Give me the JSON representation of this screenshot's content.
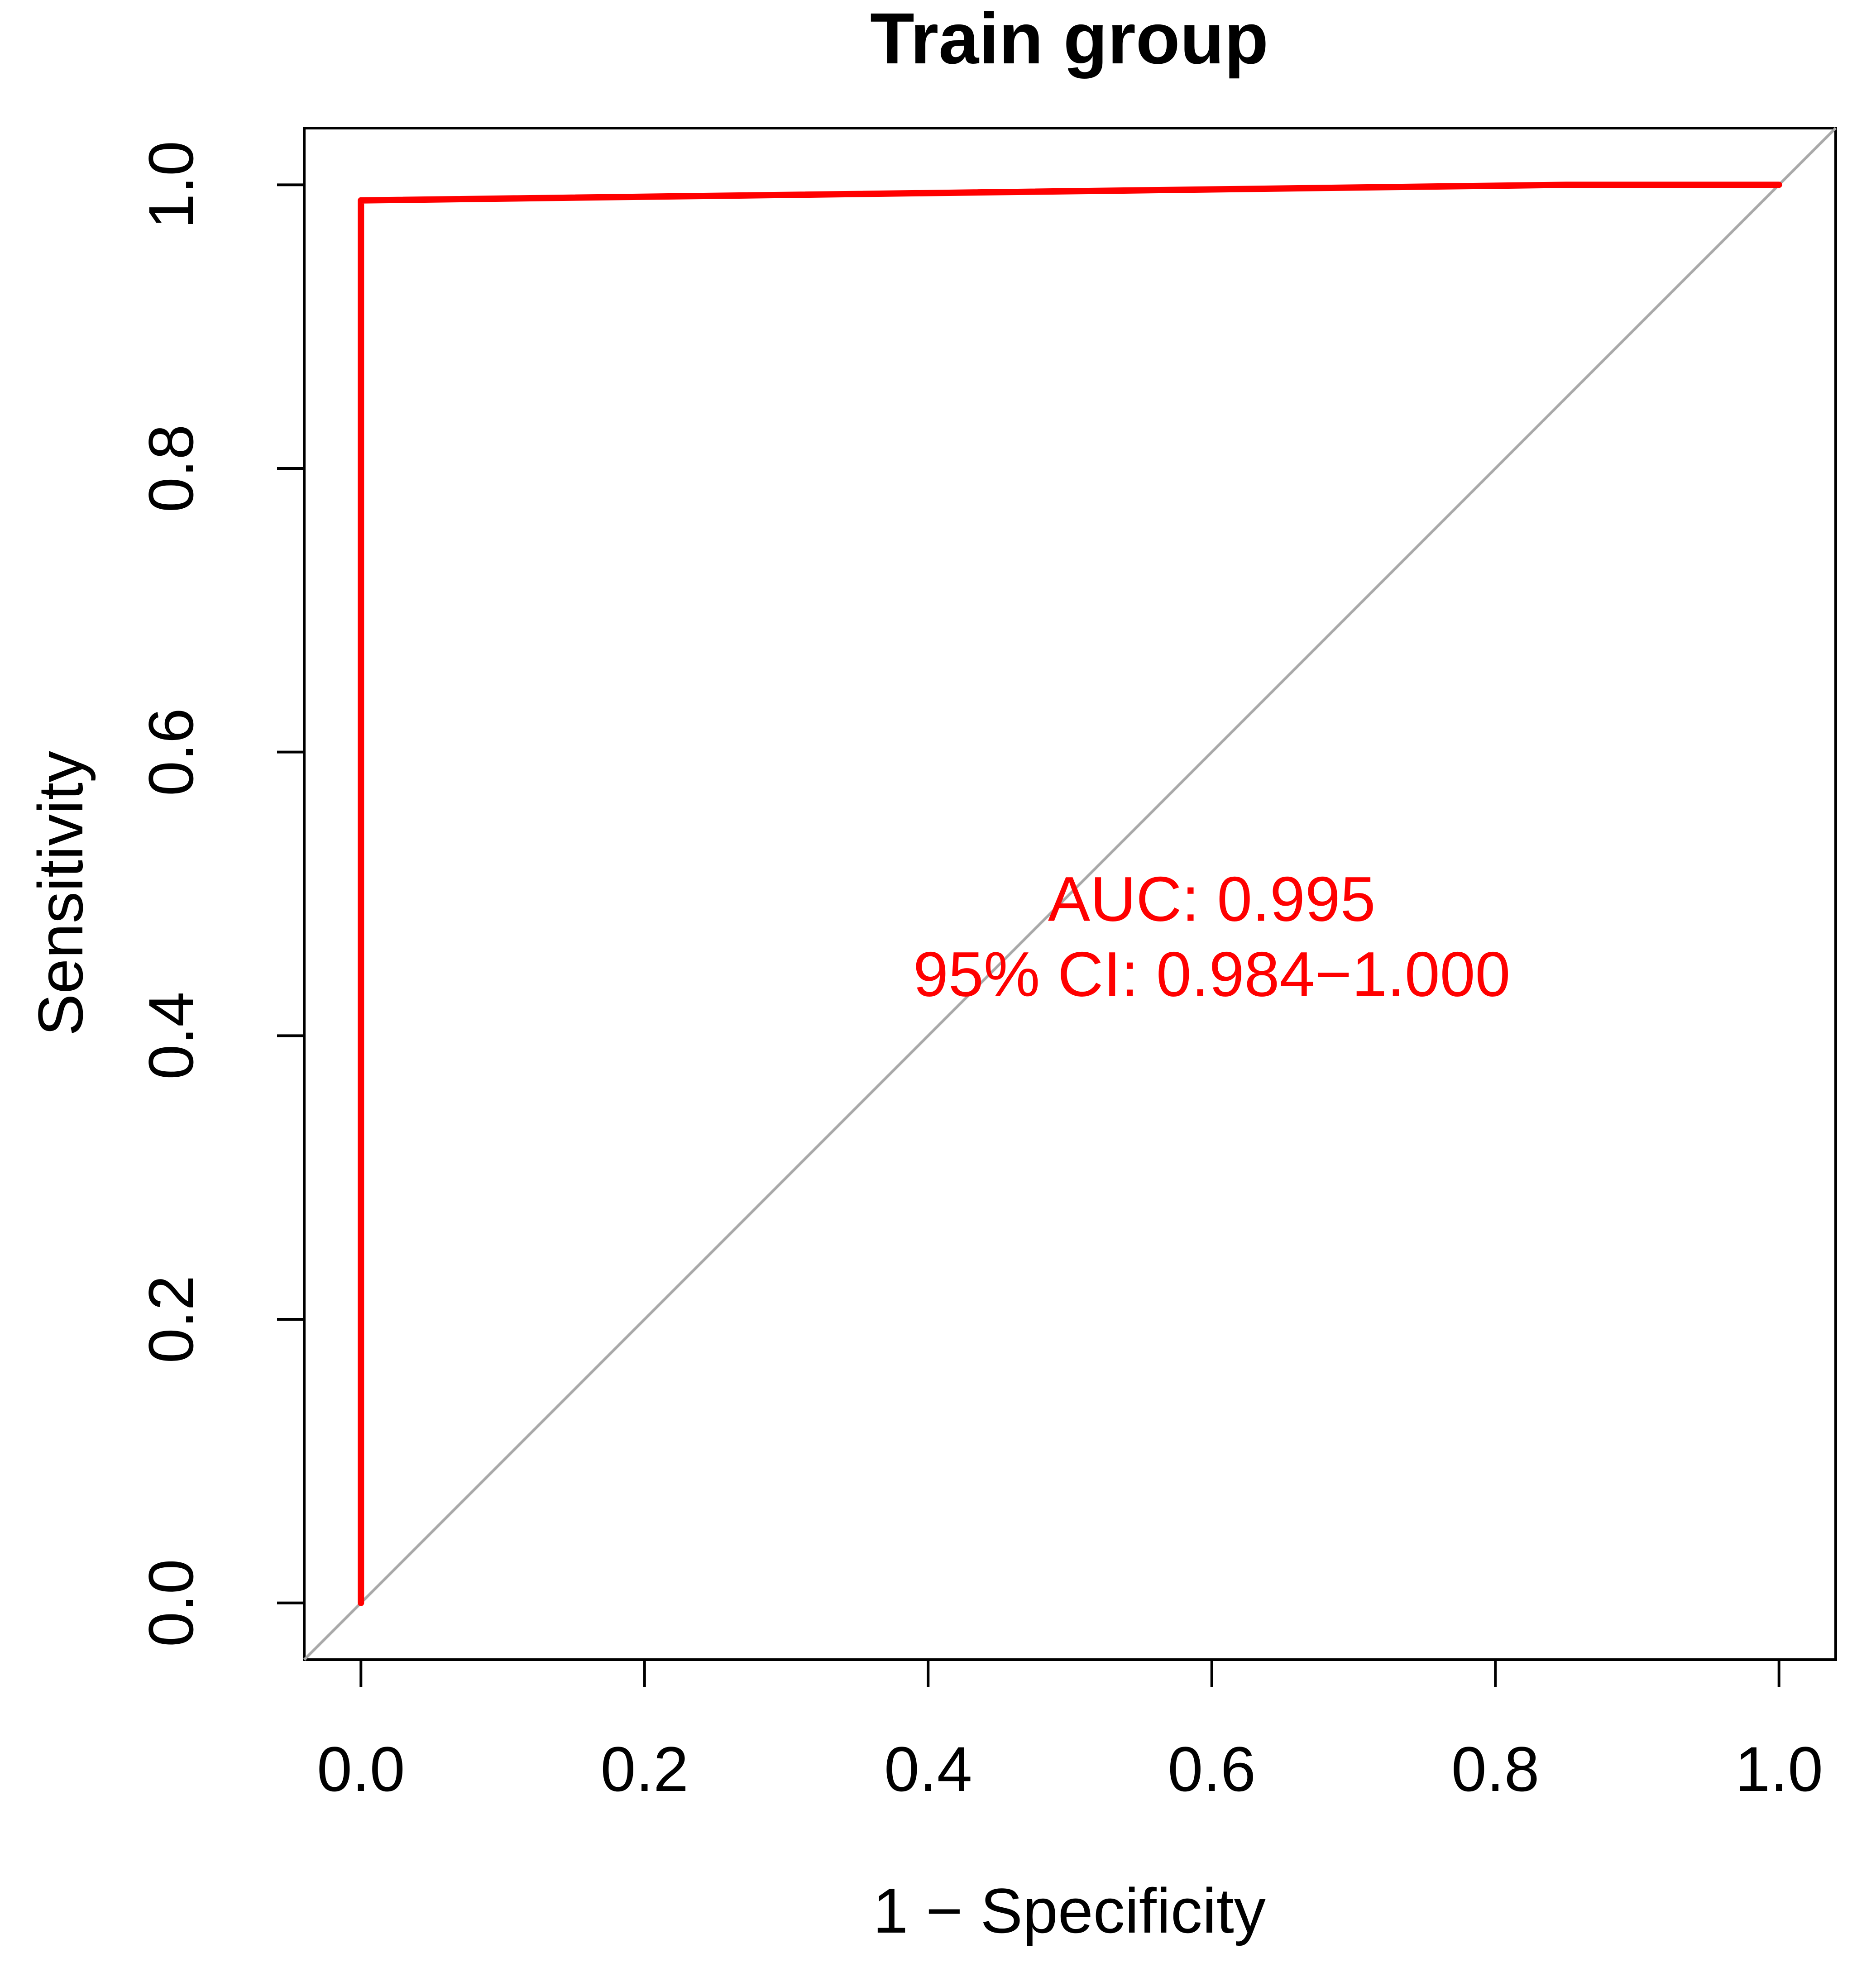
{
  "chart_data": {
    "type": "line",
    "title": "Train group",
    "xlabel": "1 − Specificity",
    "ylabel": "Sensitivity",
    "xlim": [
      -0.04,
      1.04
    ],
    "ylim": [
      -0.04,
      1.04
    ],
    "x_ticks": [
      0.0,
      0.2,
      0.4,
      0.6,
      0.8,
      1.0
    ],
    "x_tick_labels": [
      "0.0",
      "0.2",
      "0.4",
      "0.6",
      "0.8",
      "1.0"
    ],
    "y_ticks": [
      0.0,
      0.2,
      0.4,
      0.6,
      0.8,
      1.0
    ],
    "y_tick_labels": [
      "0.0",
      "0.2",
      "0.4",
      "0.6",
      "0.8",
      "1.0"
    ],
    "grid": false,
    "series": [
      {
        "type": "roc-curve",
        "color": "#ff0000",
        "x": [
          0.0,
          0.0,
          0.85,
          1.0
        ],
        "y": [
          0.0,
          0.989,
          1.0,
          1.0
        ]
      },
      {
        "type": "reference-diagonal",
        "color": "#a9a9a9",
        "x": [
          -0.04,
          1.04
        ],
        "y": [
          -0.04,
          1.04
        ]
      }
    ],
    "annotations": [
      {
        "text": "AUC: 0.995",
        "x": 0.6,
        "y": 0.481,
        "color": "#ff0000"
      },
      {
        "text": "95% CI: 0.984−1.000",
        "x": 0.6,
        "y": 0.428,
        "color": "#ff0000"
      }
    ]
  }
}
